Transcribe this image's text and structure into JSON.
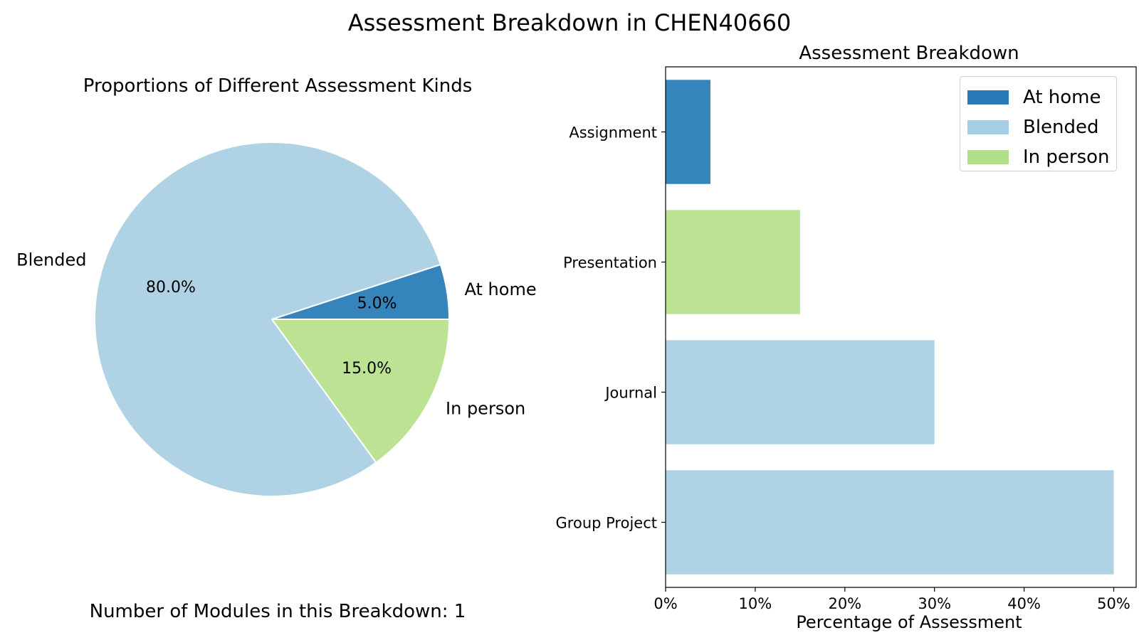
{
  "figure": {
    "suptitle": "Assessment Breakdown in CHEN40660",
    "footnote": "Number of Modules in this Breakdown: 1"
  },
  "chart_data": [
    {
      "type": "pie",
      "title": "Proportions of Different Assessment Kinds",
      "slices": [
        {
          "label": "At home",
          "value": 5.0,
          "pct_label": "5.0%",
          "color": "#3584bb"
        },
        {
          "label": "In person",
          "value": 15.0,
          "pct_label": "15.0%",
          "color": "#bce393"
        },
        {
          "label": "Blended",
          "value": 80.0,
          "pct_label": "80.0%",
          "color": "#afd2e4"
        }
      ],
      "start_angle_deg": 0,
      "direction": "clockwise"
    },
    {
      "type": "bar",
      "orientation": "horizontal",
      "title": "Assessment Breakdown",
      "xlabel": "Percentage of Assessment",
      "ylabel": "",
      "xlim": [
        0,
        52.5
      ],
      "xticks": [
        {
          "value": 0,
          "label": "0%"
        },
        {
          "value": 10,
          "label": "10%"
        },
        {
          "value": 20,
          "label": "20%"
        },
        {
          "value": 30,
          "label": "30%"
        },
        {
          "value": 40,
          "label": "40%"
        },
        {
          "value": 50,
          "label": "50%"
        }
      ],
      "bars": [
        {
          "category": "Assignment",
          "value": 5,
          "kind": "At home"
        },
        {
          "category": "Presentation",
          "value": 15,
          "kind": "In person"
        },
        {
          "category": "Journal",
          "value": 30,
          "kind": "Blended"
        },
        {
          "category": "Group Project",
          "value": 50,
          "kind": "Blended"
        }
      ],
      "legend": {
        "position": "top-right",
        "entries": [
          {
            "label": "At home",
            "color": "#2a7ab8"
          },
          {
            "label": "Blended",
            "color": "#a6cee3"
          },
          {
            "label": "In person",
            "color": "#b2df8a"
          }
        ]
      },
      "bar_colors": {
        "At home": "#3584bb",
        "Blended": "#afd2e4",
        "In person": "#bce393"
      },
      "grid": false
    }
  ]
}
